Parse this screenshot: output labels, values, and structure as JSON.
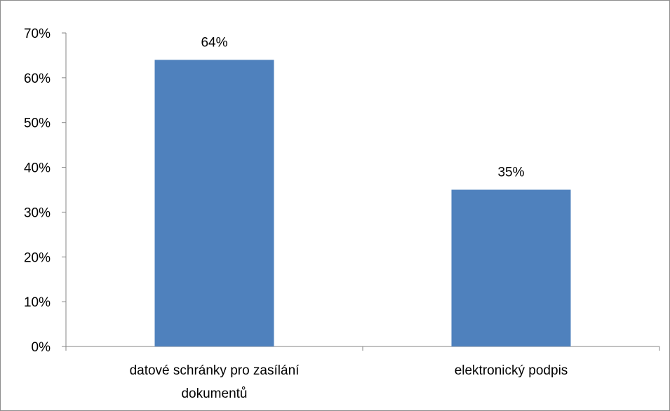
{
  "chart_data": {
    "type": "bar",
    "categories": [
      [
        "datové schránky pro zasílání",
        "dokumentů"
      ],
      [
        "elektronický podpis"
      ]
    ],
    "values": [
      64,
      35
    ],
    "data_labels": [
      "64%",
      "35%"
    ],
    "ylim": [
      0,
      70
    ],
    "y_ticks": [
      0,
      10,
      20,
      30,
      40,
      50,
      60,
      70
    ],
    "y_tick_labels": [
      "0%",
      "10%",
      "20%",
      "30%",
      "40%",
      "50%",
      "60%",
      "70%"
    ],
    "grid": false,
    "legend": "none",
    "bar_color": "#4f81bd",
    "axis_color": "#868686"
  }
}
